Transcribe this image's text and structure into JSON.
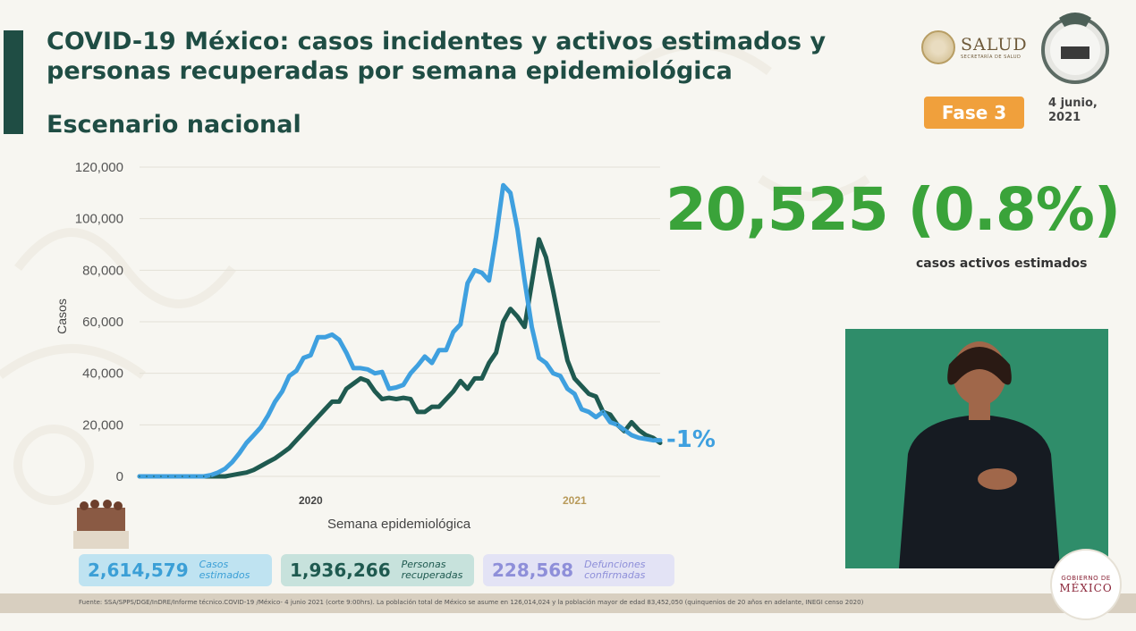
{
  "header": {
    "title": "COVID-19 México: casos incidentes y activos estimados y personas recuperadas por semana epidemiológica",
    "subtitle": "Escenario nacional"
  },
  "logos": {
    "salud_text": "SALUD",
    "salud_sub": "SECRETARÍA DE SALUD",
    "gobierno_small": "GOBIERNO DE",
    "gobierno_big": "MÉXICO"
  },
  "badge": {
    "fase": "Fase 3",
    "date_line1": "4 junio,",
    "date_line2": "2021"
  },
  "highlight": {
    "value": "20,525 (0.8%)",
    "caption": "casos activos estimados",
    "change": "-1%"
  },
  "totals": [
    {
      "number": "2,614,579",
      "label_line1": "Casos",
      "label_line2": "estimados"
    },
    {
      "number": "1,936,266",
      "label_line1": "Personas",
      "label_line2": "recuperadas"
    },
    {
      "number": "228,568",
      "label_line1": "Defunciones",
      "label_line2": "confirmadas"
    }
  ],
  "source": "Fuente: SSA/SPPS/DGE/InDRE/Informe técnico.COVID-19 /México- 4 junio 2021 (corte 9:00hrs). La población total de México se asume en 126,014,024 y la población mayor de edad 83,452,050 (quinquenios de 20 años en adelante, INEGI censo 2020)",
  "colors": {
    "incident": "#3fa0df",
    "active": "#1f5a50",
    "title": "#1f4d44",
    "highlight": "#3aa33a",
    "fase": "#f0a03c"
  },
  "chart_data": {
    "type": "line",
    "xlabel": "Semana epidemiológica",
    "ylabel": "Casos",
    "ylim": [
      0,
      120000
    ],
    "yticks": [
      0,
      20000,
      40000,
      60000,
      80000,
      100000,
      120000
    ],
    "ytick_labels": [
      "0",
      "20,000",
      "40,000",
      "60,000",
      "80,000",
      "100,000",
      "120,000"
    ],
    "year_labels": [
      {
        "label": "2020",
        "index": 24
      },
      {
        "label": "2021",
        "index": 61
      }
    ],
    "x_count": 74,
    "series": [
      {
        "name": "Casos incidentes",
        "color": "#3fa0df",
        "values": [
          0,
          0,
          0,
          0,
          0,
          0,
          0,
          0,
          0,
          0,
          500,
          1500,
          3000,
          5500,
          9000,
          13000,
          16000,
          19000,
          23500,
          29000,
          33000,
          39000,
          41000,
          46000,
          47000,
          54000,
          54000,
          55000,
          53000,
          48000,
          42000,
          42000,
          41500,
          40000,
          40500,
          34000,
          34500,
          35500,
          40000,
          43000,
          46500,
          44000,
          49000,
          49000,
          56000,
          59000,
          75000,
          80000,
          79000,
          76000,
          93000,
          113000,
          110000,
          96000,
          76000,
          58000,
          46000,
          44000,
          40000,
          39000,
          34000,
          32000,
          26000,
          25000,
          23000,
          25000,
          21000,
          20000,
          18000,
          16000,
          15000,
          14500,
          14000,
          14000
        ]
      },
      {
        "name": "Casos activos",
        "color": "#1f5a50",
        "values": [
          0,
          0,
          0,
          0,
          0,
          0,
          0,
          0,
          0,
          0,
          0,
          0,
          0,
          500,
          1000,
          1500,
          2500,
          4000,
          5500,
          7000,
          9000,
          11000,
          14000,
          17000,
          20000,
          23000,
          26000,
          29000,
          29000,
          34000,
          36000,
          38000,
          37000,
          33000,
          30000,
          30500,
          30000,
          30500,
          30000,
          25000,
          25000,
          27000,
          27000,
          30000,
          33000,
          37000,
          34000,
          38000,
          38000,
          44000,
          48000,
          60000,
          65000,
          62000,
          58000,
          75000,
          92000,
          85000,
          72000,
          58000,
          45000,
          38000,
          35000,
          32000,
          31000,
          25000,
          24000,
          20000,
          17500,
          21000,
          18000,
          16000,
          15000,
          13000
        ]
      }
    ]
  }
}
